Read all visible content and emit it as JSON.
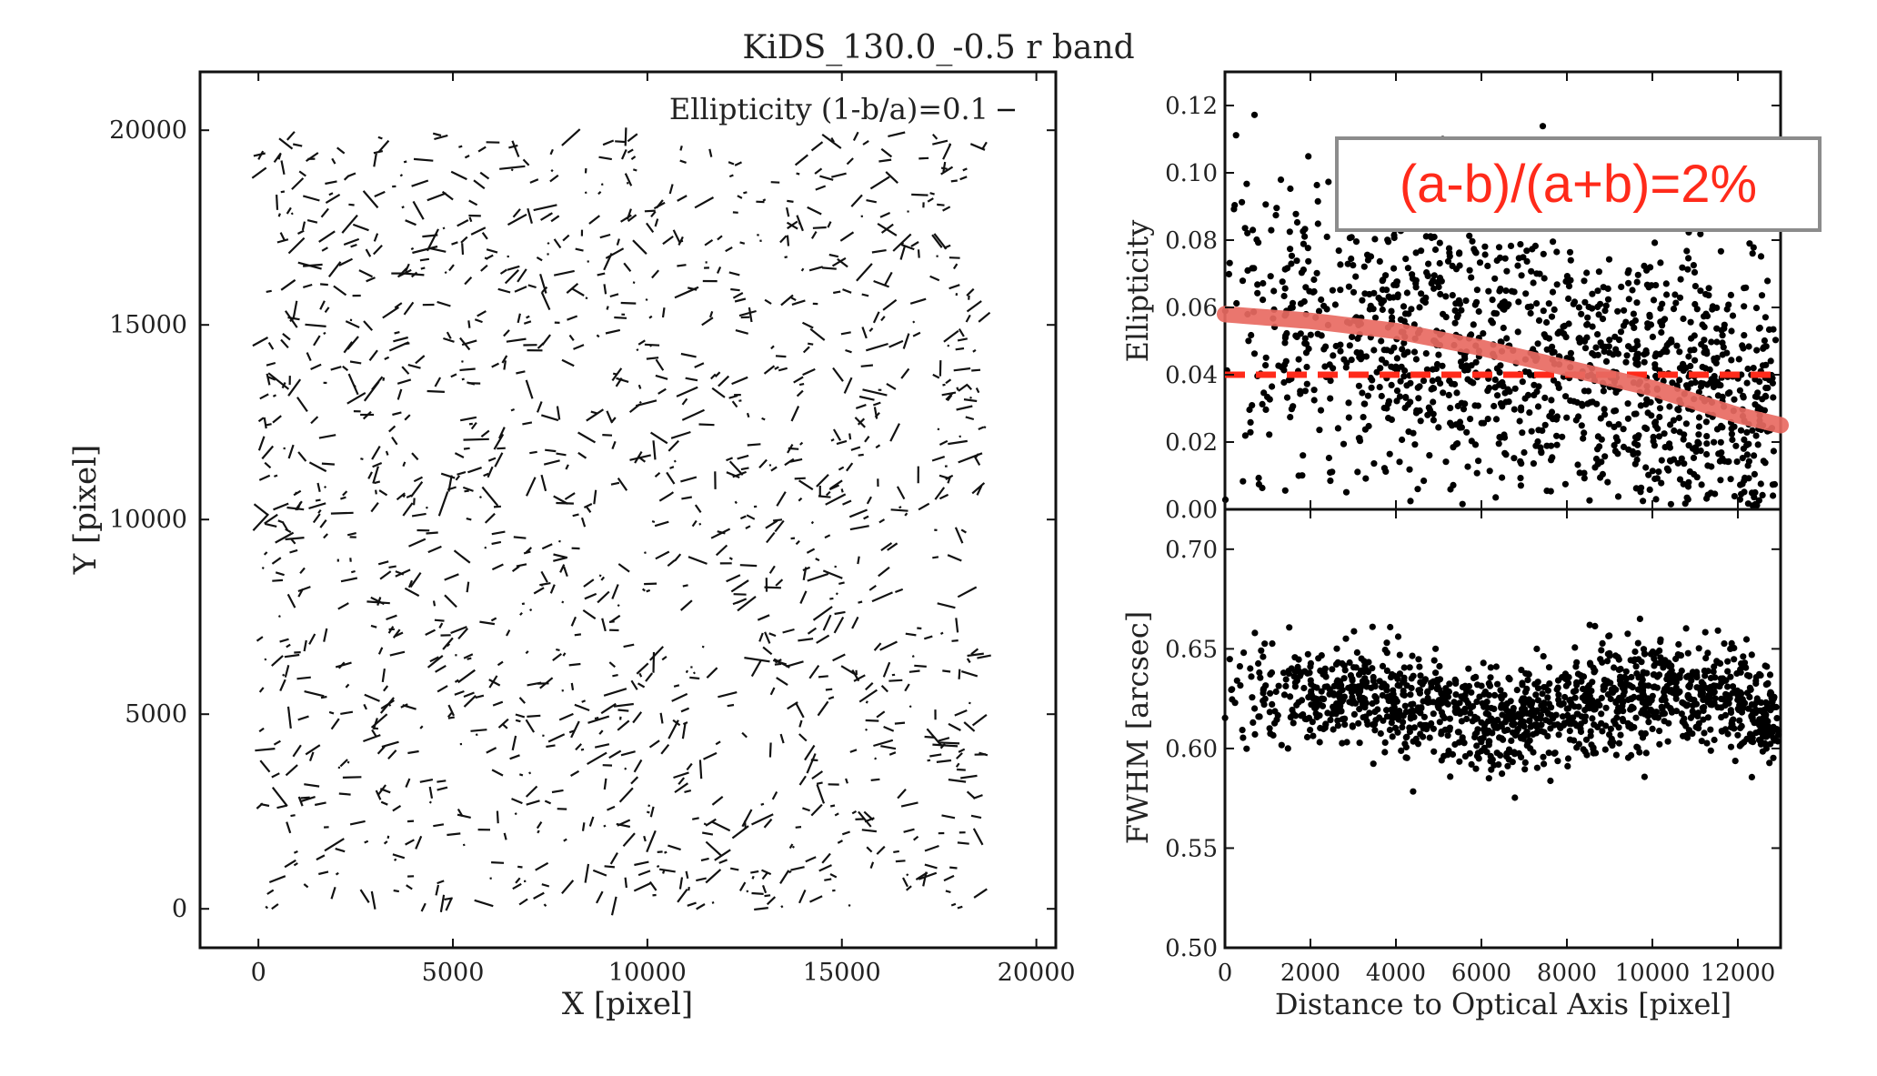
{
  "chart_data": [
    {
      "type": "vector-field",
      "title": "KiDS_130.0_-0.5 r band",
      "xlabel": "X [pixel]",
      "ylabel": "Y [pixel]",
      "xlim": [
        -1500,
        20500
      ],
      "ylim": [
        -1000,
        21500
      ],
      "xticks": [
        0,
        5000,
        10000,
        15000,
        20000
      ],
      "yticks": [
        0,
        5000,
        10000,
        15000,
        20000
      ],
      "legend": "Ellipticity (1-b/a)=0.1",
      "legend_position": "top-right",
      "grid": false,
      "note": "whisker field: one short stick per star; length proportional to ellipticity, orientation is PSF position angle",
      "field_extent": {
        "x": [
          0,
          18700
        ],
        "y": [
          0,
          19900
        ]
      },
      "typical_ellipticity": 0.05,
      "dominant_angle_deg": 22,
      "star_count_approx": 1400
    },
    {
      "type": "scatter",
      "xlim": [
        0,
        13000
      ],
      "ylabel": "Ellipticity",
      "ylim": [
        0.0,
        0.13
      ],
      "yticks": [
        0.0,
        0.02,
        0.04,
        0.06,
        0.08,
        0.1,
        0.12
      ],
      "grid": false,
      "mean_line": 0.04,
      "mean_line_color": "#ff2a1a",
      "trend": [
        [
          0,
          0.058
        ],
        [
          2000,
          0.056
        ],
        [
          4000,
          0.053
        ],
        [
          6000,
          0.048
        ],
        [
          8000,
          0.042
        ],
        [
          10000,
          0.036
        ],
        [
          12000,
          0.028
        ],
        [
          13000,
          0.025
        ]
      ],
      "trend_color": "#e86a62",
      "annotation": "(a-b)/(a+b)=2%",
      "point_count_approx": 1400
    },
    {
      "type": "scatter",
      "xlabel": "Distance to Optical Axis [pixel]",
      "xlim": [
        0,
        13000
      ],
      "xticks": [
        0,
        2000,
        4000,
        6000,
        8000,
        10000,
        12000
      ],
      "ylabel": "FWHM [arcsec]",
      "ylim": [
        0.5,
        0.72
      ],
      "yticks": [
        0.5,
        0.55,
        0.6,
        0.65,
        0.7
      ],
      "grid": false,
      "profile": [
        [
          0,
          0.63
        ],
        [
          2000,
          0.63
        ],
        [
          4000,
          0.625
        ],
        [
          6000,
          0.612
        ],
        [
          8000,
          0.618
        ],
        [
          10000,
          0.63
        ],
        [
          12000,
          0.625
        ],
        [
          13000,
          0.61
        ]
      ],
      "point_count_approx": 1400
    }
  ]
}
